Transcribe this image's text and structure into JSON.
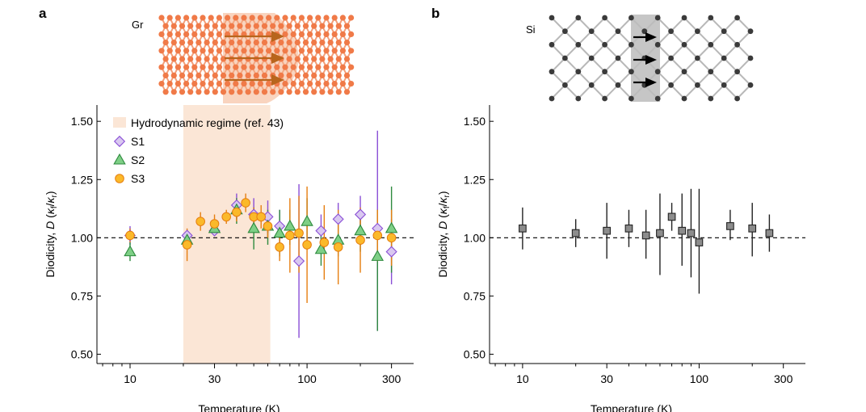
{
  "chart_data": [
    {
      "panel": "a",
      "type": "scatter",
      "inset_label": "Gr",
      "xlabel": "Temperature (K)",
      "ylabel": "Diodicity, D (κf/κr)",
      "ylabel_parts": {
        "main": "Diodicity, ",
        "var": "D",
        "open": " (",
        "k1": "κ",
        "s1": "f",
        "slash": "/",
        "k2": "κ",
        "s2": "r",
        "close": ")"
      },
      "xscale": "log",
      "xlim": [
        6.5,
        400
      ],
      "ylim": [
        0.46,
        1.57
      ],
      "xticks": [
        10,
        30,
        100,
        300
      ],
      "xtick_labels": [
        "10",
        "30",
        "100",
        "300"
      ],
      "yticks": [
        0.5,
        0.75,
        1.0,
        1.25,
        1.5
      ],
      "ytick_labels": [
        "0.50",
        "0.75",
        "1.00",
        "1.25",
        "1.50"
      ],
      "reference_line": 1.0,
      "shaded_region": {
        "x": [
          20,
          62
        ],
        "label": "Hydrodynamic regime (ref. 43)",
        "color": "#fbe6d6"
      },
      "legend_position": "top-left",
      "series": [
        {
          "name": "S1",
          "marker": "diamond",
          "fill": "#d9c8f0",
          "edge": "#8a4fd6",
          "points": [
            {
              "x": 10,
              "y": 1.01,
              "lo": 0.97,
              "hi": 1.05
            },
            {
              "x": 21,
              "y": 1.01,
              "lo": 0.98,
              "hi": 1.03
            },
            {
              "x": 30,
              "y": 1.03,
              "lo": 1.01,
              "hi": 1.05
            },
            {
              "x": 40,
              "y": 1.14,
              "lo": 1.08,
              "hi": 1.19
            },
            {
              "x": 50,
              "y": 1.1,
              "lo": 1.03,
              "hi": 1.17
            },
            {
              "x": 60,
              "y": 1.09,
              "lo": 1.02,
              "hi": 1.16
            },
            {
              "x": 70,
              "y": 1.05,
              "lo": 0.97,
              "hi": 1.12
            },
            {
              "x": 90,
              "y": 0.9,
              "lo": 0.57,
              "hi": 1.23
            },
            {
              "x": 120,
              "y": 1.03,
              "lo": 0.96,
              "hi": 1.1
            },
            {
              "x": 150,
              "y": 1.08,
              "lo": 1.01,
              "hi": 1.15
            },
            {
              "x": 200,
              "y": 1.1,
              "lo": 1.02,
              "hi": 1.18
            },
            {
              "x": 250,
              "y": 1.04,
              "lo": 0.6,
              "hi": 1.46
            },
            {
              "x": 300,
              "y": 0.94,
              "lo": 0.8,
              "hi": 1.08
            }
          ]
        },
        {
          "name": "S2",
          "marker": "triangle",
          "fill": "#7ecf86",
          "edge": "#2e8a3e",
          "points": [
            {
              "x": 10,
              "y": 0.94,
              "lo": 0.9,
              "hi": 0.98
            },
            {
              "x": 21,
              "y": 0.99,
              "lo": 0.97,
              "hi": 1.01
            },
            {
              "x": 30,
              "y": 1.04,
              "lo": 1.02,
              "hi": 1.06
            },
            {
              "x": 40,
              "y": 1.12,
              "lo": 1.06,
              "hi": 1.17
            },
            {
              "x": 50,
              "y": 1.04,
              "lo": 0.95,
              "hi": 1.13
            },
            {
              "x": 60,
              "y": 1.05,
              "lo": 0.97,
              "hi": 1.12
            },
            {
              "x": 70,
              "y": 1.02,
              "lo": 0.92,
              "hi": 1.12
            },
            {
              "x": 80,
              "y": 1.05,
              "lo": 0.97,
              "hi": 1.12
            },
            {
              "x": 100,
              "y": 1.07,
              "lo": 0.95,
              "hi": 1.17
            },
            {
              "x": 120,
              "y": 0.95,
              "lo": 0.88,
              "hi": 1.02
            },
            {
              "x": 150,
              "y": 0.99,
              "lo": 0.92,
              "hi": 1.06
            },
            {
              "x": 200,
              "y": 1.03,
              "lo": 0.94,
              "hi": 1.12
            },
            {
              "x": 250,
              "y": 0.92,
              "lo": 0.6,
              "hi": 1.12
            },
            {
              "x": 300,
              "y": 1.04,
              "lo": 0.85,
              "hi": 1.22
            }
          ]
        },
        {
          "name": "S3",
          "marker": "circle",
          "fill": "#fbb92a",
          "edge": "#e67e10",
          "points": [
            {
              "x": 10,
              "y": 1.01,
              "lo": 0.98,
              "hi": 1.04
            },
            {
              "x": 21,
              "y": 0.97,
              "lo": 0.9,
              "hi": 1.04
            },
            {
              "x": 25,
              "y": 1.07,
              "lo": 1.03,
              "hi": 1.11
            },
            {
              "x": 30,
              "y": 1.06,
              "lo": 1.02,
              "hi": 1.1
            },
            {
              "x": 35,
              "y": 1.09,
              "lo": 1.06,
              "hi": 1.12
            },
            {
              "x": 40,
              "y": 1.11,
              "lo": 1.07,
              "hi": 1.15
            },
            {
              "x": 45,
              "y": 1.15,
              "lo": 1.11,
              "hi": 1.19
            },
            {
              "x": 50,
              "y": 1.09,
              "lo": 1.05,
              "hi": 1.13
            },
            {
              "x": 55,
              "y": 1.09,
              "lo": 1.04,
              "hi": 1.14
            },
            {
              "x": 60,
              "y": 1.05,
              "lo": 1.0,
              "hi": 1.1
            },
            {
              "x": 70,
              "y": 0.96,
              "lo": 0.9,
              "hi": 1.02
            },
            {
              "x": 80,
              "y": 1.01,
              "lo": 0.85,
              "hi": 1.17
            },
            {
              "x": 90,
              "y": 1.02,
              "lo": 0.85,
              "hi": 1.18
            },
            {
              "x": 100,
              "y": 0.97,
              "lo": 0.72,
              "hi": 1.22
            },
            {
              "x": 125,
              "y": 0.98,
              "lo": 0.82,
              "hi": 1.14
            },
            {
              "x": 150,
              "y": 0.96,
              "lo": 0.8,
              "hi": 1.12
            },
            {
              "x": 200,
              "y": 0.99,
              "lo": 0.85,
              "hi": 1.13
            },
            {
              "x": 250,
              "y": 1.01,
              "lo": 0.9,
              "hi": 1.12
            },
            {
              "x": 300,
              "y": 1.0,
              "lo": 0.88,
              "hi": 1.12
            }
          ]
        }
      ]
    },
    {
      "panel": "b",
      "type": "scatter",
      "inset_label": "Si",
      "xlabel": "Temperature (K)",
      "ylabel": "Diodicity, D (κf/κr)",
      "ylabel_parts": {
        "main": "Diodicity, ",
        "var": "D",
        "open": " (",
        "k1": "κ",
        "s1": "f",
        "slash": "/",
        "k2": "κ",
        "s2": "r",
        "close": ")"
      },
      "xscale": "log",
      "xlim": [
        6.5,
        400
      ],
      "ylim": [
        0.46,
        1.57
      ],
      "xticks": [
        10,
        30,
        100,
        300
      ],
      "xtick_labels": [
        "10",
        "30",
        "100",
        "300"
      ],
      "yticks": [
        0.5,
        0.75,
        1.0,
        1.25,
        1.5
      ],
      "ytick_labels": [
        "0.50",
        "0.75",
        "1.00",
        "1.25",
        "1.50"
      ],
      "reference_line": 1.0,
      "series": [
        {
          "name": "Si",
          "marker": "square",
          "fill": "#8c8c8c",
          "edge": "#222222",
          "points": [
            {
              "x": 10,
              "y": 1.04,
              "lo": 0.95,
              "hi": 1.13
            },
            {
              "x": 20,
              "y": 1.02,
              "lo": 0.96,
              "hi": 1.08
            },
            {
              "x": 30,
              "y": 1.03,
              "lo": 0.91,
              "hi": 1.15
            },
            {
              "x": 40,
              "y": 1.04,
              "lo": 0.96,
              "hi": 1.12
            },
            {
              "x": 50,
              "y": 1.01,
              "lo": 0.91,
              "hi": 1.12
            },
            {
              "x": 60,
              "y": 1.02,
              "lo": 0.84,
              "hi": 1.19
            },
            {
              "x": 70,
              "y": 1.09,
              "lo": 1.03,
              "hi": 1.15
            },
            {
              "x": 80,
              "y": 1.03,
              "lo": 0.88,
              "hi": 1.19
            },
            {
              "x": 90,
              "y": 1.02,
              "lo": 0.83,
              "hi": 1.21
            },
            {
              "x": 100,
              "y": 0.98,
              "lo": 0.76,
              "hi": 1.21
            },
            {
              "x": 150,
              "y": 1.05,
              "lo": 0.99,
              "hi": 1.12
            },
            {
              "x": 200,
              "y": 1.04,
              "lo": 0.92,
              "hi": 1.15
            },
            {
              "x": 250,
              "y": 1.02,
              "lo": 0.94,
              "hi": 1.1
            }
          ]
        }
      ]
    }
  ],
  "panels": {
    "a": "a",
    "b": "b"
  },
  "colors": {
    "shade": "#fbe6d6",
    "gr_bond": "#f2a07c",
    "gr_atom": "#f07a48",
    "gr_arrow": "#b8651c",
    "si_atom": "#3a3a3a",
    "si_bond": "#b8b8b8",
    "si_band": "#bcbcbc"
  }
}
